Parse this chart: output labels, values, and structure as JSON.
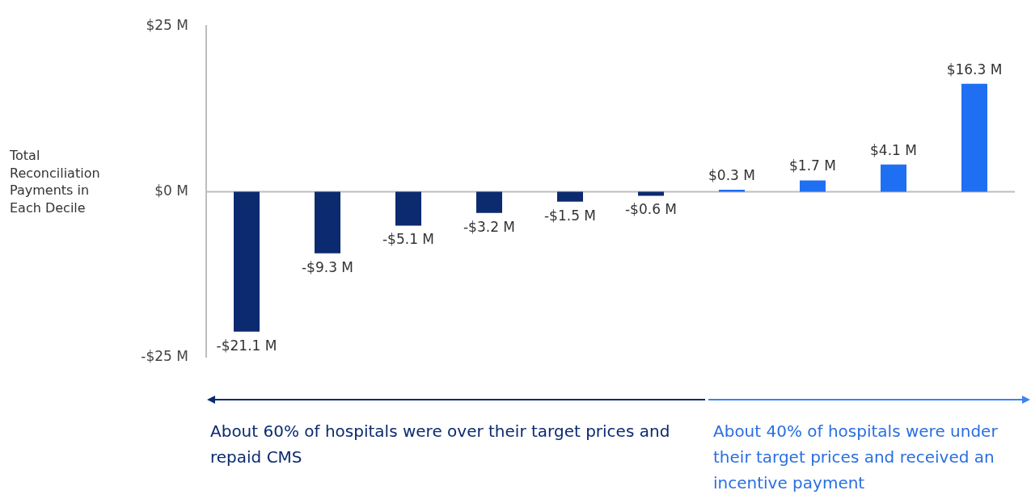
{
  "chart_data": {
    "type": "bar",
    "ylabel": "Total Reconciliation Payments in Each Decile",
    "categories": [
      null,
      null,
      null,
      null,
      null,
      null,
      null,
      null,
      null,
      null
    ],
    "values": [
      -21.1,
      -9.3,
      -5.1,
      -3.2,
      -1.5,
      -0.6,
      0.3,
      1.7,
      4.1,
      16.3
    ],
    "colors": [
      "#0b2a6f",
      "#0b2a6f",
      "#0b2a6f",
      "#0b2a6f",
      "#0b2a6f",
      "#0b2a6f",
      "#1f6ff2",
      "#1f6ff2",
      "#1f6ff2",
      "#1f6ff2"
    ],
    "value_labels": [
      "-$21.1 M",
      "-$9.3 M",
      "-$5.1 M",
      "-$3.2 M",
      "-$1.5 M",
      "-$0.6 M",
      "$0.3 M",
      "$1.7 M",
      "$4.1 M",
      "$16.3 M"
    ],
    "ylim": [
      -25,
      25
    ],
    "yticks": [
      {
        "value": -25,
        "label": "-$25 M"
      },
      {
        "value": 0,
        "label": "$0 M"
      },
      {
        "value": 25,
        "label": "$25 M"
      }
    ],
    "annotations": [
      "About 60% of hospitals were over their target prices and repaid CMS",
      "About 40% of hospitals were under their target prices and received an incentive payment"
    ],
    "legend": false
  }
}
